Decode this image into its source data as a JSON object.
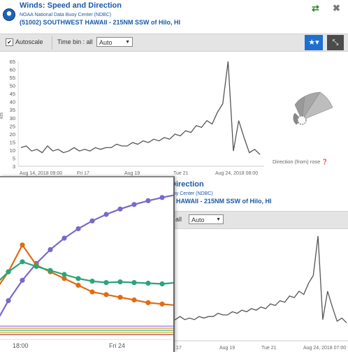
{
  "back_window": {
    "title": "Winds: Speed and Direction",
    "subtitle": "NOAA National Data Buoy Center (NDBC)",
    "station": "(51002) SOUTHWEST HAWAII - 215NM SSW of Hilo, HI",
    "toolbar": {
      "autoscale_label": "Autoscale",
      "timebin_label": "Time bin : all",
      "timebin_value": "Auto",
      "checkbox_glyph": "✔"
    },
    "icons": {
      "shuffle": "shuffle-icon",
      "close": "close-icon",
      "star_menu": "star-menu-icon",
      "expand": "expand-icon"
    },
    "icon_glyphs": {
      "shuffle": "⇄",
      "close": "✖",
      "star_menu": "★▾",
      "expand": "⤡"
    },
    "y_ticks": [
      "65",
      "60",
      "55",
      "50",
      "45",
      "40",
      "35",
      "30",
      "25",
      "20",
      "15",
      "10",
      "5",
      "3"
    ],
    "y_unit": "kts",
    "x_ticks": [
      "Aug 14, 2018 09:00",
      "Fri 17",
      "Aug 19",
      "Tue 21",
      "Aug 24, 2018 08:00"
    ],
    "rose_label": "Direction (from) rose ❓"
  },
  "lower_window": {
    "title": "Direction",
    "subtitle": "uoy Center (NDBC)",
    "station": "T HAWAII - 215NM SSW of Hilo, HI",
    "timebin_label": ": all",
    "timebin_value": "Auto",
    "x_ticks": [
      "17",
      "Aug 19",
      "Tue 21",
      "Aug 24, 2018 07:00"
    ]
  },
  "front_window": {
    "x_ticks": [
      "18:00",
      "Fri 24"
    ]
  },
  "chart_data": [
    {
      "type": "line",
      "title": "Winds: Speed and Direction",
      "ylabel": "kts",
      "ylim": [
        3,
        65
      ],
      "series": [
        {
          "values": [
            14,
            15,
            12,
            13,
            11,
            15,
            12,
            13,
            11,
            12,
            14,
            12,
            13,
            12,
            14,
            13,
            14,
            14,
            16,
            15,
            15,
            17,
            16,
            18,
            17,
            19,
            18,
            20,
            19,
            22,
            21,
            24,
            23,
            27,
            26,
            30,
            28,
            35,
            40,
            65,
            12,
            30,
            20,
            11,
            13,
            10
          ]
        }
      ]
    },
    {
      "type": "line",
      "series": [
        {
          "color": "#7b68c8",
          "values": [
            0,
            1,
            2,
            3,
            4,
            5,
            6,
            7,
            8,
            9,
            10,
            11,
            12,
            13,
            14,
            15,
            16,
            17,
            18,
            19,
            20
          ]
        },
        {
          "color": "#e06c13",
          "values": [
            5,
            8,
            12,
            9,
            8,
            7,
            6,
            5,
            4.6,
            4.2,
            3.8,
            3.4,
            3.2,
            3.0,
            2.8
          ]
        },
        {
          "color": "#2aa57a",
          "values": [
            6,
            8,
            9.5,
            8.8,
            8.2,
            7.6,
            7.0,
            6.6,
            6.4,
            6.5,
            6.4,
            6.3,
            6.2,
            6.4,
            6.3
          ]
        }
      ]
    }
  ],
  "colors": {
    "title_blue": "#1a5aa8",
    "accent": "#1f6fd1",
    "shuffle_green": "#2a8a2a"
  }
}
